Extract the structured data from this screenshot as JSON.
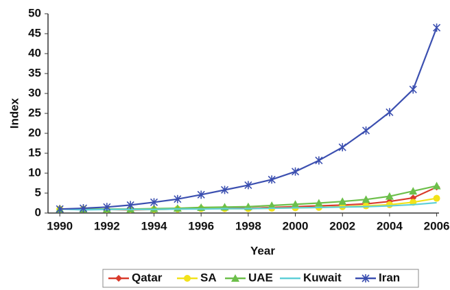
{
  "chart_data": {
    "type": "line",
    "x_label": "Year",
    "y_label": "Index",
    "x": [
      1990,
      1991,
      1992,
      1993,
      1994,
      1995,
      1996,
      1997,
      1998,
      1999,
      2000,
      2001,
      2002,
      2003,
      2004,
      2005,
      2006
    ],
    "xlim": [
      1989.5,
      2006.1
    ],
    "xticks": [
      1990,
      1992,
      1994,
      1996,
      1998,
      2000,
      2002,
      2004,
      2006
    ],
    "ylim": [
      0,
      50
    ],
    "yticks": [
      0,
      5,
      10,
      15,
      20,
      25,
      30,
      35,
      40,
      45,
      50
    ],
    "grid": false,
    "legend": "bottom",
    "series": [
      {
        "name": "Qatar",
        "color": "#d93a2b",
        "marker": "diamond",
        "values": [
          1,
          0.9,
          0.9,
          0.8,
          0.9,
          1,
          1.1,
          1.2,
          1.2,
          1.4,
          1.6,
          1.8,
          2,
          2.3,
          2.9,
          3.8,
          6.5
        ]
      },
      {
        "name": "SA",
        "color": "#f2e21a",
        "marker": "circle",
        "values": [
          1,
          1,
          0.9,
          0.9,
          0.9,
          1,
          1.1,
          1.1,
          1.1,
          1.2,
          1.3,
          1.4,
          1.6,
          1.8,
          2.1,
          2.7,
          3.7
        ]
      },
      {
        "name": "UAE",
        "color": "#6cbf4a",
        "marker": "triangle",
        "values": [
          1,
          1,
          1,
          1,
          1.1,
          1.2,
          1.4,
          1.5,
          1.6,
          1.9,
          2.2,
          2.5,
          2.9,
          3.4,
          4.2,
          5.5,
          6.8
        ]
      },
      {
        "name": "Kuwait",
        "color": "#5fcfd8",
        "marker": "none",
        "values": [
          1,
          0.8,
          0.9,
          0.9,
          0.9,
          1,
          1,
          1.1,
          1.1,
          1.2,
          1.3,
          1.4,
          1.5,
          1.6,
          1.8,
          2.1,
          2.6
        ]
      },
      {
        "name": "Iran",
        "color": "#3b4fb0",
        "marker": "star",
        "values": [
          1,
          1.2,
          1.5,
          2,
          2.7,
          3.5,
          4.6,
          5.8,
          7,
          8.4,
          10.4,
          13.2,
          16.5,
          20.7,
          25.3,
          31,
          46.5
        ]
      }
    ]
  }
}
